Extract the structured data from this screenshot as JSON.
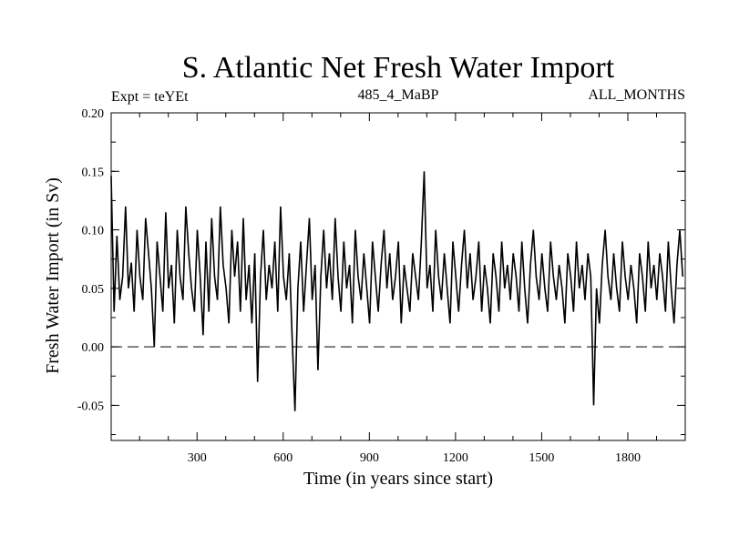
{
  "chart_data": {
    "type": "line",
    "title": "S. Atlantic Net Fresh Water Import",
    "subtitle_left": "Expt = teYEt",
    "subtitle_center": "485_4_MaBP",
    "subtitle_right": "ALL_MONTHS",
    "xlabel": "Time (in years since start)",
    "ylabel": "Fresh Water Import (in Sv)",
    "xlim": [
      1,
      2000
    ],
    "ylim": [
      -0.08,
      0.2
    ],
    "x_ticks": [
      300,
      600,
      900,
      1200,
      1500,
      1800
    ],
    "x_tick_labels": [
      "300",
      "600",
      "900",
      "1200",
      "1500",
      "1800"
    ],
    "y_ticks": [
      -0.05,
      0.0,
      0.05,
      0.1,
      0.15,
      0.2
    ],
    "y_tick_labels": [
      "-0.05",
      "0.00",
      "0.05",
      "0.10",
      "0.15",
      "0.20"
    ],
    "reference_line": {
      "y": 0.0,
      "style": "dashed"
    },
    "series": [
      {
        "name": "Net fresh water import",
        "x_start": 1,
        "x_step": 10,
        "values": [
          0.146,
          0.03,
          0.095,
          0.04,
          0.06,
          0.12,
          0.05,
          0.072,
          0.03,
          0.1,
          0.06,
          0.04,
          0.11,
          0.08,
          0.05,
          0.0,
          0.09,
          0.06,
          0.03,
          0.115,
          0.05,
          0.07,
          0.02,
          0.1,
          0.06,
          0.04,
          0.12,
          0.08,
          0.05,
          0.03,
          0.1,
          0.06,
          0.01,
          0.09,
          0.03,
          0.11,
          0.06,
          0.04,
          0.12,
          0.07,
          0.05,
          0.02,
          0.1,
          0.06,
          0.09,
          0.03,
          0.11,
          0.04,
          0.07,
          0.02,
          0.08,
          -0.03,
          0.06,
          0.1,
          0.04,
          0.07,
          0.05,
          0.09,
          0.03,
          0.12,
          0.06,
          0.04,
          0.08,
          0.01,
          -0.055,
          0.05,
          0.09,
          0.03,
          0.07,
          0.11,
          0.04,
          0.07,
          -0.02,
          0.06,
          0.1,
          0.05,
          0.08,
          0.04,
          0.11,
          0.06,
          0.03,
          0.09,
          0.05,
          0.07,
          0.02,
          0.1,
          0.06,
          0.04,
          0.08,
          0.05,
          0.02,
          0.09,
          0.06,
          0.03,
          0.07,
          0.1,
          0.05,
          0.08,
          0.04,
          0.06,
          0.09,
          0.02,
          0.07,
          0.05,
          0.03,
          0.08,
          0.06,
          0.04,
          0.09,
          0.15,
          0.05,
          0.07,
          0.03,
          0.1,
          0.06,
          0.04,
          0.08,
          0.05,
          0.02,
          0.09,
          0.06,
          0.03,
          0.07,
          0.1,
          0.05,
          0.08,
          0.04,
          0.06,
          0.09,
          0.03,
          0.07,
          0.05,
          0.02,
          0.08,
          0.06,
          0.03,
          0.09,
          0.05,
          0.07,
          0.04,
          0.08,
          0.06,
          0.03,
          0.09,
          0.05,
          0.02,
          0.07,
          0.1,
          0.06,
          0.04,
          0.08,
          0.05,
          0.03,
          0.09,
          0.06,
          0.04,
          0.07,
          0.05,
          0.02,
          0.08,
          0.06,
          0.03,
          0.09,
          0.05,
          0.07,
          0.04,
          0.08,
          0.06,
          -0.05,
          0.05,
          0.02,
          0.07,
          0.1,
          0.06,
          0.04,
          0.08,
          0.05,
          0.03,
          0.09,
          0.06,
          0.04,
          0.07,
          0.05,
          0.02,
          0.08,
          0.06,
          0.03,
          0.09,
          0.05,
          0.07,
          0.04,
          0.08,
          0.06,
          0.03,
          0.09,
          0.05,
          0.02,
          0.07,
          0.1,
          0.06
        ]
      }
    ]
  }
}
